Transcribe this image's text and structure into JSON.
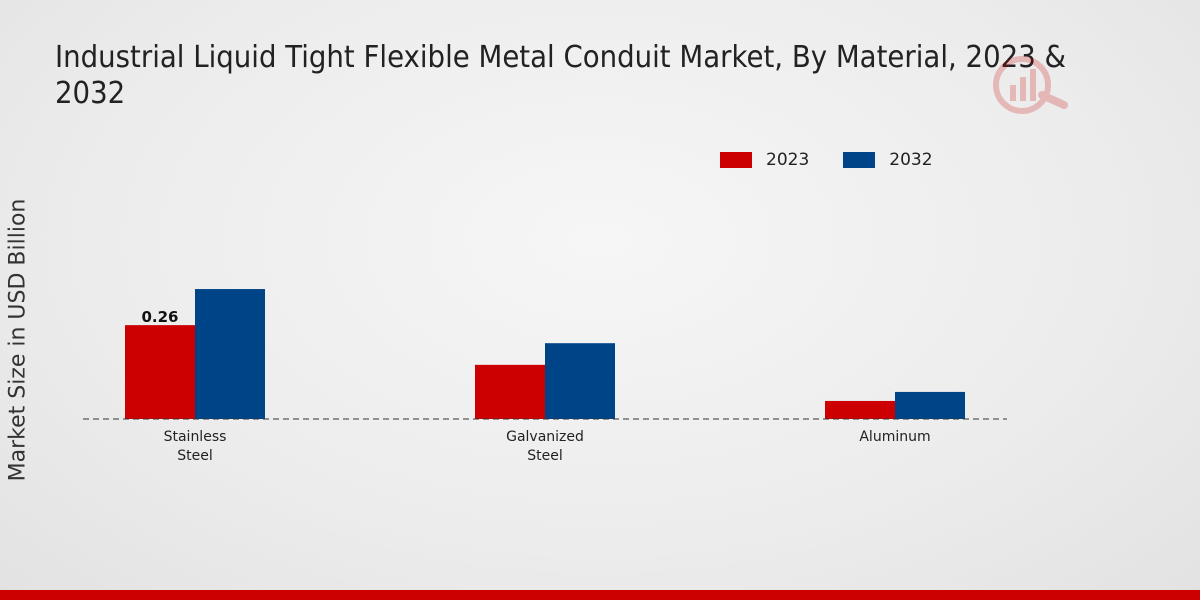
{
  "title": "Industrial Liquid Tight Flexible Metal Conduit Market, By Material, 2023 & 2032",
  "colors": {
    "series_2023": "#cc0000",
    "series_2032": "#004488",
    "bottom_bar": "#cc0000"
  },
  "chart_data": {
    "type": "bar",
    "title": "Industrial Liquid Tight Flexible Metal Conduit Market, By Material, 2023 & 2032",
    "xlabel": "",
    "ylabel": "Market Size in USD Billion",
    "categories": [
      [
        "Stainless",
        "Steel"
      ],
      [
        "Galvanized",
        "Steel"
      ],
      [
        "Aluminum"
      ]
    ],
    "series": [
      {
        "name": "2023",
        "values": [
          0.26,
          0.15,
          0.05
        ]
      },
      {
        "name": "2032",
        "values": [
          0.36,
          0.21,
          0.075
        ]
      }
    ],
    "data_labels": [
      {
        "series": 0,
        "category": 0,
        "text": "0.26"
      }
    ],
    "ylim": [
      0,
      0.4
    ],
    "legend_position": "top-right",
    "grid": false
  }
}
